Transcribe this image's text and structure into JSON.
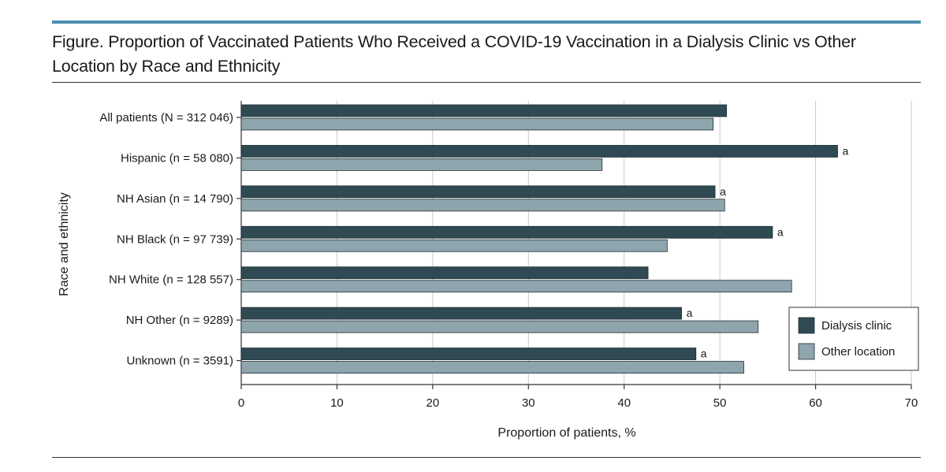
{
  "figure": {
    "title": "Figure. Proportion of Vaccinated Patients Who Received a COVID-19 Vaccination in a Dialysis Clinic vs Other Location by Race and Ethnicity"
  },
  "chart_data": {
    "type": "bar",
    "orientation": "horizontal",
    "title": "Figure. Proportion of Vaccinated Patients Who Received a COVID-19 Vaccination in a Dialysis Clinic vs Other Location by Race and Ethnicity",
    "xlabel": "Proportion of patients, %",
    "ylabel": "Race and ethnicity",
    "xlim": [
      0,
      70
    ],
    "xticks": [
      0,
      10,
      20,
      30,
      40,
      50,
      60,
      70
    ],
    "grid": "vertical",
    "legend_position": "bottom-right",
    "categories": [
      "All patients (N = 312 046)",
      "Hispanic (n = 58 080)",
      "NH Asian (n = 14 790)",
      "NH Black (n = 97 739)",
      "NH White (n = 128 557)",
      "NH Other (n = 9289)",
      "Unknown (n = 3591)"
    ],
    "series": [
      {
        "name": "Dialysis clinic",
        "color": "#2f4a52",
        "values": [
          50.7,
          62.3,
          49.5,
          55.5,
          42.5,
          46.0,
          47.5
        ]
      },
      {
        "name": "Other location",
        "color": "#8fa5ae",
        "values": [
          49.3,
          37.7,
          50.5,
          44.5,
          57.5,
          54.0,
          52.5
        ]
      }
    ],
    "annotation_marker": "a",
    "annotations": [
      false,
      true,
      true,
      true,
      false,
      true,
      true
    ]
  }
}
